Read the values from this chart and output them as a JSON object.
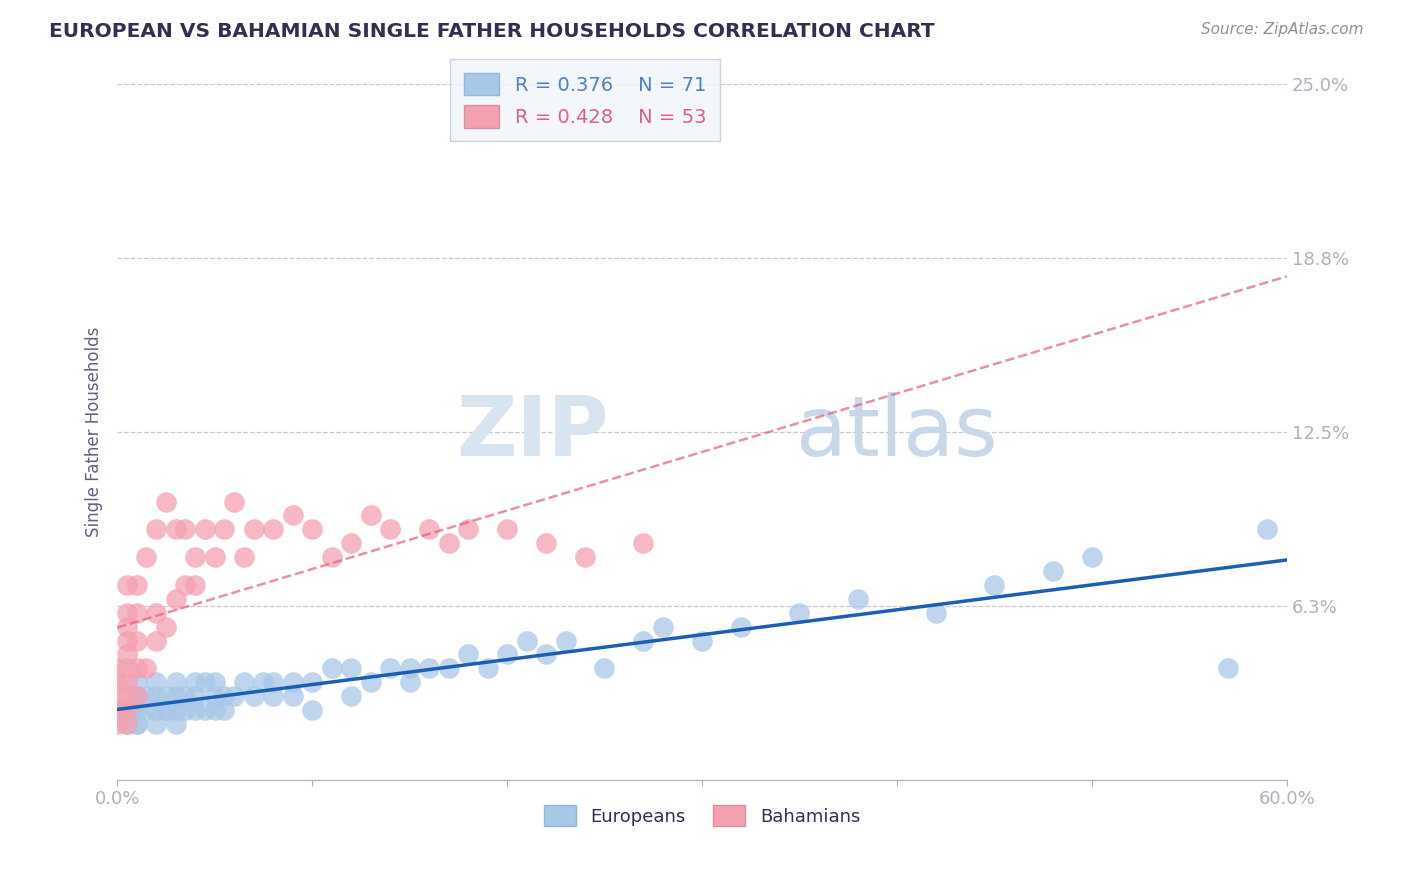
{
  "title": "EUROPEAN VS BAHAMIAN SINGLE FATHER HOUSEHOLDS CORRELATION CHART",
  "source": "Source: ZipAtlas.com",
  "ylabel": "Single Father Households",
  "xlim": [
    0.0,
    0.6
  ],
  "ylim": [
    0.0,
    0.25
  ],
  "xticks": [
    0.0,
    0.1,
    0.2,
    0.3,
    0.4,
    0.5,
    0.6
  ],
  "xticklabels": [
    "0.0%",
    "",
    "",
    "",
    "",
    "",
    "60.0%"
  ],
  "ytick_values": [
    0.0,
    0.0625,
    0.125,
    0.1875,
    0.25
  ],
  "ytick_labels": [
    "",
    "6.3%",
    "12.5%",
    "18.8%",
    "25.0%"
  ],
  "R_european": 0.376,
  "N_european": 71,
  "R_bahamian": 0.428,
  "N_bahamian": 53,
  "european_color": "#a8c8e8",
  "bahamian_color": "#f4a0b0",
  "line_european_color": "#1a5fb4",
  "line_bahamian_color": "#e06080",
  "grid_color": "#c8c8d8",
  "background_color": "#ffffff",
  "title_color": "#303050",
  "axis_label_color": "#5080c0",
  "europeans_x": [
    0.0,
    0.005,
    0.008,
    0.01,
    0.01,
    0.01,
    0.01,
    0.01,
    0.015,
    0.015,
    0.02,
    0.02,
    0.02,
    0.02,
    0.025,
    0.025,
    0.025,
    0.03,
    0.03,
    0.03,
    0.03,
    0.035,
    0.035,
    0.04,
    0.04,
    0.04,
    0.045,
    0.045,
    0.05,
    0.05,
    0.05,
    0.055,
    0.055,
    0.06,
    0.065,
    0.07,
    0.075,
    0.08,
    0.08,
    0.09,
    0.09,
    0.1,
    0.1,
    0.11,
    0.12,
    0.12,
    0.13,
    0.14,
    0.15,
    0.15,
    0.16,
    0.17,
    0.18,
    0.19,
    0.2,
    0.21,
    0.22,
    0.23,
    0.25,
    0.27,
    0.28,
    0.3,
    0.32,
    0.35,
    0.38,
    0.42,
    0.45,
    0.48,
    0.5,
    0.57,
    0.59
  ],
  "europeans_y": [
    0.025,
    0.02,
    0.025,
    0.02,
    0.025,
    0.03,
    0.035,
    0.02,
    0.025,
    0.03,
    0.025,
    0.03,
    0.035,
    0.02,
    0.025,
    0.03,
    0.025,
    0.02,
    0.025,
    0.03,
    0.035,
    0.025,
    0.03,
    0.025,
    0.03,
    0.035,
    0.025,
    0.035,
    0.025,
    0.03,
    0.035,
    0.025,
    0.03,
    0.03,
    0.035,
    0.03,
    0.035,
    0.03,
    0.035,
    0.03,
    0.035,
    0.025,
    0.035,
    0.04,
    0.03,
    0.04,
    0.035,
    0.04,
    0.035,
    0.04,
    0.04,
    0.04,
    0.045,
    0.04,
    0.045,
    0.05,
    0.045,
    0.05,
    0.04,
    0.05,
    0.055,
    0.05,
    0.055,
    0.06,
    0.065,
    0.06,
    0.07,
    0.075,
    0.08,
    0.04,
    0.09
  ],
  "bahamians_x": [
    0.0,
    0.0,
    0.0,
    0.0,
    0.0,
    0.005,
    0.005,
    0.005,
    0.005,
    0.005,
    0.005,
    0.005,
    0.005,
    0.005,
    0.005,
    0.01,
    0.01,
    0.01,
    0.01,
    0.01,
    0.015,
    0.015,
    0.02,
    0.02,
    0.02,
    0.025,
    0.025,
    0.03,
    0.03,
    0.035,
    0.035,
    0.04,
    0.04,
    0.045,
    0.05,
    0.055,
    0.06,
    0.065,
    0.07,
    0.08,
    0.09,
    0.1,
    0.11,
    0.12,
    0.13,
    0.14,
    0.16,
    0.17,
    0.18,
    0.2,
    0.22,
    0.24,
    0.27
  ],
  "bahamians_y": [
    0.02,
    0.025,
    0.03,
    0.035,
    0.04,
    0.02,
    0.025,
    0.03,
    0.035,
    0.04,
    0.045,
    0.05,
    0.055,
    0.06,
    0.07,
    0.03,
    0.04,
    0.05,
    0.06,
    0.07,
    0.04,
    0.08,
    0.05,
    0.06,
    0.09,
    0.055,
    0.1,
    0.065,
    0.09,
    0.07,
    0.09,
    0.07,
    0.08,
    0.09,
    0.08,
    0.09,
    0.1,
    0.08,
    0.09,
    0.09,
    0.095,
    0.09,
    0.08,
    0.085,
    0.095,
    0.09,
    0.09,
    0.085,
    0.09,
    0.09,
    0.085,
    0.08,
    0.085
  ]
}
